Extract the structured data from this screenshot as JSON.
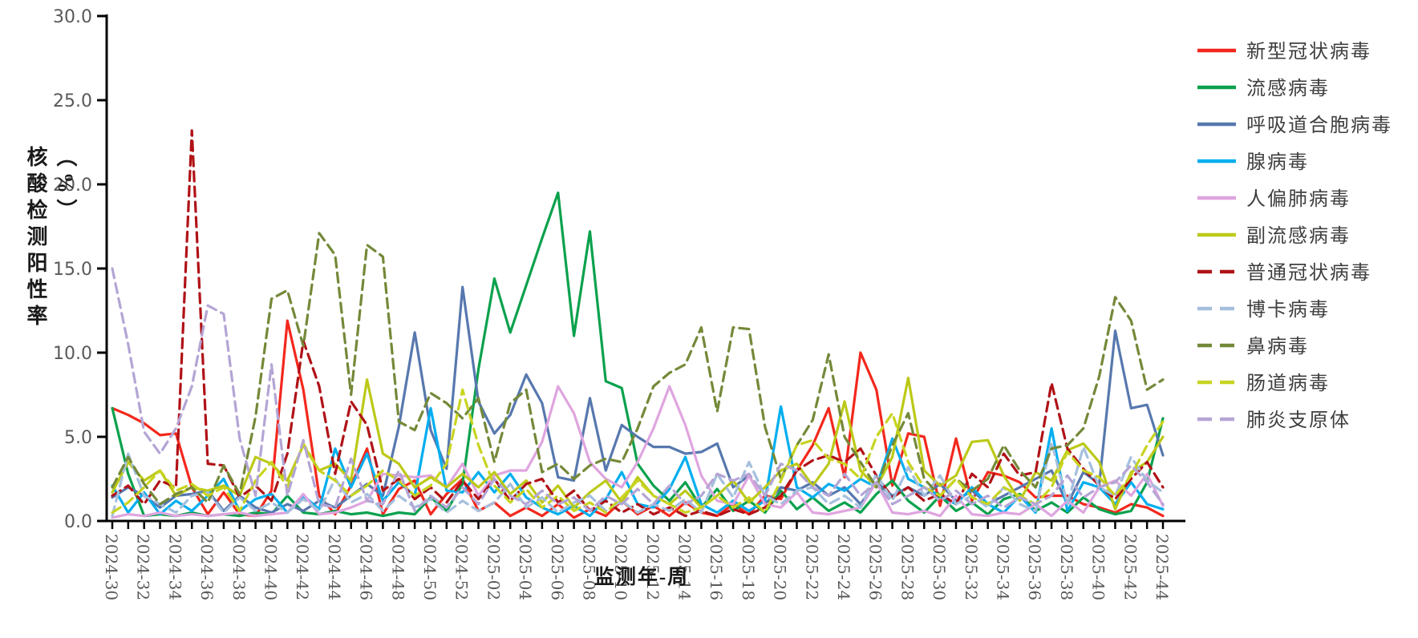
{
  "y_axis": {
    "title": "核酸检测阳性率（%）",
    "min": 0,
    "max": 30,
    "step": 5,
    "tick_labels": [
      "0.0",
      "5.0",
      "10.0",
      "15.0",
      "20.0",
      "25.0",
      "30.0"
    ]
  },
  "x_axis": {
    "title": "监测年-周",
    "label_every_n_weeks": 2
  },
  "chart_data": {
    "type": "line",
    "title": "",
    "xlabel": "监测年-周",
    "ylabel": "核酸检测阳性率（%）",
    "ylim": [
      0,
      30
    ],
    "grid": false,
    "legend_position": "right",
    "x": [
      "2024-30",
      "2024-31",
      "2024-32",
      "2024-33",
      "2024-34",
      "2024-35",
      "2024-36",
      "2024-37",
      "2024-38",
      "2024-39",
      "2024-40",
      "2024-41",
      "2024-42",
      "2024-43",
      "2024-44",
      "2024-45",
      "2024-46",
      "2024-47",
      "2024-48",
      "2024-49",
      "2024-50",
      "2024-51",
      "2024-52",
      "2025-01",
      "2025-02",
      "2025-03",
      "2025-04",
      "2025-05",
      "2025-06",
      "2025-07",
      "2025-08",
      "2025-09",
      "2025-10",
      "2025-11",
      "2025-12",
      "2025-13",
      "2025-14",
      "2025-15",
      "2025-16",
      "2025-17",
      "2025-18",
      "2025-19",
      "2025-20",
      "2025-21",
      "2025-22",
      "2025-23",
      "2025-24",
      "2025-25",
      "2025-26",
      "2025-27",
      "2025-28",
      "2025-29",
      "2025-30",
      "2025-31",
      "2025-32",
      "2025-33",
      "2025-34",
      "2025-35",
      "2025-36",
      "2025-37",
      "2025-38",
      "2025-39",
      "2025-40",
      "2025-41",
      "2025-42",
      "2025-43",
      "2025-44"
    ],
    "series": [
      {
        "name": "新型冠状病毒",
        "color": "#F3281D",
        "dashed": false,
        "values": [
          6.7,
          6.3,
          5.8,
          5.1,
          5.2,
          2.0,
          0.4,
          1.7,
          0.4,
          0.3,
          1.8,
          11.9,
          7.8,
          1.5,
          0.4,
          2.1,
          4.3,
          0.4,
          1.9,
          2.4,
          0.4,
          1.6,
          2.5,
          0.6,
          1.1,
          0.3,
          0.8,
          0.3,
          1.0,
          0.2,
          0.7,
          0.3,
          1.2,
          0.4,
          0.9,
          0.3,
          1.1,
          0.5,
          0.3,
          1.0,
          0.4,
          1.5,
          1.3,
          3.0,
          4.5,
          6.7,
          2.6,
          10.0,
          7.8,
          2.1,
          5.2,
          5.0,
          0.9,
          4.9,
          1.2,
          2.9,
          2.7,
          2.3,
          1.4,
          1.5,
          1.5,
          1.0,
          0.8,
          0.5,
          1.0,
          0.8,
          0.3
        ]
      },
      {
        "name": "流感病毒",
        "color": "#0AA14D",
        "dashed": false,
        "values": [
          6.7,
          2.8,
          0.3,
          0.4,
          0.3,
          0.5,
          0.3,
          0.4,
          0.3,
          0.5,
          0.4,
          1.5,
          0.5,
          0.4,
          0.6,
          0.4,
          0.5,
          0.3,
          0.5,
          0.4,
          1.4,
          0.6,
          2.2,
          9.0,
          14.4,
          11.2,
          14.0,
          16.8,
          19.5,
          11.0,
          17.2,
          8.3,
          7.9,
          3.4,
          2.1,
          1.2,
          2.3,
          0.8,
          1.9,
          0.6,
          1.2,
          0.5,
          1.8,
          0.7,
          1.4,
          0.6,
          1.1,
          0.5,
          1.6,
          2.4,
          1.2,
          0.5,
          1.5,
          0.6,
          1.1,
          0.4,
          1.3,
          1.6,
          0.6,
          1.1,
          0.5,
          1.4,
          0.7,
          0.4,
          0.6,
          2.3,
          6.1
        ]
      },
      {
        "name": "呼吸道合胞病毒",
        "color": "#5778AE",
        "dashed": false,
        "values": [
          1.4,
          2.0,
          1.5,
          0.8,
          1.5,
          1.6,
          1.8,
          0.6,
          1.5,
          0.8,
          0.5,
          1.0,
          0.6,
          1.2,
          0.8,
          1.5,
          2.2,
          1.5,
          5.6,
          11.2,
          5.4,
          3.1,
          13.9,
          7.1,
          5.2,
          6.3,
          8.7,
          7.0,
          2.6,
          2.4,
          7.3,
          3.0,
          5.7,
          5.0,
          4.4,
          4.4,
          4.0,
          4.1,
          4.6,
          2.0,
          2.7,
          1.0,
          2.0,
          1.8,
          2.3,
          1.5,
          2.0,
          1.0,
          2.3,
          1.5,
          2.0,
          1.5,
          2.2,
          1.2,
          1.8,
          1.0,
          1.5,
          2.0,
          2.5,
          3.0,
          1.0,
          2.9,
          2.2,
          11.3,
          6.7,
          6.9,
          3.9
        ]
      },
      {
        "name": "腺病毒",
        "color": "#00AEEF",
        "dashed": false,
        "values": [
          2.1,
          0.5,
          1.7,
          0.4,
          1.2,
          0.6,
          1.5,
          2.5,
          0.6,
          1.3,
          1.6,
          0.5,
          1.5,
          0.7,
          4.3,
          2.0,
          4.0,
          1.2,
          2.3,
          1.5,
          6.7,
          1.8,
          1.7,
          2.9,
          1.7,
          2.8,
          1.4,
          0.8,
          0.4,
          0.9,
          0.3,
          1.3,
          2.9,
          1.0,
          0.8,
          1.9,
          3.8,
          1.0,
          0.5,
          1.2,
          0.6,
          1.2,
          6.8,
          2.0,
          1.4,
          2.2,
          1.8,
          2.5,
          2.0,
          4.9,
          2.5,
          2.0,
          1.5,
          1.0,
          2.0,
          1.0,
          0.5,
          1.5,
          0.5,
          5.5,
          0.6,
          2.3,
          2.0,
          1.0,
          2.3,
          1.0,
          0.7
        ]
      },
      {
        "name": "人偏肺病毒",
        "color": "#DFA5DF",
        "dashed": false,
        "values": [
          0.2,
          0.4,
          0.3,
          0.5,
          0.3,
          0.4,
          0.3,
          0.4,
          0.5,
          0.3,
          0.4,
          0.5,
          1.6,
          0.4,
          0.5,
          0.8,
          1.2,
          2.8,
          2.7,
          2.6,
          2.7,
          2.0,
          3.4,
          1.5,
          2.7,
          3.0,
          3.0,
          4.7,
          8.0,
          6.4,
          3.5,
          2.5,
          2.0,
          3.5,
          5.5,
          8.0,
          5.7,
          2.7,
          1.2,
          1.0,
          2.7,
          1.0,
          0.8,
          1.7,
          0.5,
          0.4,
          0.6,
          0.8,
          2.3,
          0.5,
          0.4,
          0.6,
          0.3,
          1.5,
          0.4,
          0.3,
          0.5,
          0.4,
          1.0,
          0.3,
          1.2,
          0.5,
          2.0,
          2.4,
          1.5,
          2.8,
          0.9
        ]
      },
      {
        "name": "副流感病毒",
        "color": "#BCC918",
        "dashed": false,
        "values": [
          1.7,
          3.5,
          2.4,
          3.0,
          1.5,
          2.0,
          1.8,
          2.1,
          1.5,
          3.8,
          3.4,
          2.4,
          4.5,
          3.0,
          3.4,
          2.4,
          8.4,
          4.0,
          3.4,
          2.0,
          2.6,
          2.0,
          2.8,
          2.0,
          2.9,
          1.6,
          2.4,
          1.1,
          2.1,
          0.8,
          1.7,
          2.4,
          1.1,
          2.6,
          1.5,
          1.0,
          1.8,
          0.8,
          1.5,
          2.4,
          1.1,
          2.0,
          3.0,
          3.4,
          2.1,
          3.4,
          7.1,
          3.0,
          2.0,
          3.8,
          8.5,
          3.0,
          2.1,
          2.7,
          4.7,
          4.8,
          2.7,
          1.2,
          2.9,
          2.4,
          4.2,
          4.6,
          3.5,
          0.7,
          2.9,
          3.5,
          5.0
        ]
      },
      {
        "name": "普通冠状病毒",
        "color": "#B01217",
        "dashed": true,
        "values": [
          1.5,
          2.1,
          1.0,
          2.4,
          2.0,
          23.2,
          3.4,
          3.3,
          1.4,
          2.1,
          1.2,
          4.0,
          10.7,
          8.0,
          2.8,
          7.1,
          5.7,
          1.8,
          2.5,
          1.3,
          2.0,
          1.1,
          2.4,
          1.3,
          2.5,
          1.2,
          2.2,
          2.5,
          1.1,
          1.8,
          0.6,
          1.2,
          0.5,
          1.0,
          0.4,
          0.8,
          0.3,
          0.6,
          0.3,
          0.7,
          0.4,
          0.8,
          1.5,
          3.0,
          3.6,
          3.9,
          3.5,
          4.3,
          2.7,
          1.4,
          2.0,
          1.2,
          1.6,
          1.0,
          2.8,
          2.0,
          4.0,
          2.7,
          2.9,
          8.2,
          4.3,
          3.1,
          2.1,
          1.3,
          2.5,
          3.5,
          2.0
        ]
      },
      {
        "name": "博卡病毒",
        "color": "#A5BFDD",
        "dashed": true,
        "values": [
          0.3,
          4.0,
          1.5,
          1.0,
          0.5,
          1.5,
          1.7,
          0.5,
          1.4,
          0.6,
          1.1,
          0.5,
          1.3,
          0.6,
          2.5,
          1.1,
          1.6,
          0.6,
          1.5,
          0.8,
          1.3,
          0.5,
          1.2,
          0.6,
          1.1,
          2.2,
          0.8,
          1.4,
          0.5,
          1.1,
          1.5,
          0.6,
          1.2,
          0.5,
          1.0,
          0.6,
          1.3,
          0.5,
          2.8,
          1.4,
          3.5,
          1.5,
          1.0,
          1.8,
          2.0,
          1.0,
          1.5,
          0.8,
          2.8,
          1.2,
          3.2,
          1.5,
          2.7,
          1.0,
          1.5,
          0.8,
          2.0,
          1.0,
          0.6,
          4.7,
          1.0,
          4.4,
          2.0,
          1.5,
          3.8,
          2.4,
          1.7
        ]
      },
      {
        "name": "鼻病毒",
        "color": "#748939",
        "dashed": true,
        "values": [
          2.0,
          3.8,
          2.2,
          1.0,
          1.6,
          2.0,
          1.1,
          3.3,
          1.6,
          6.2,
          13.2,
          13.7,
          10.4,
          17.1,
          15.8,
          7.5,
          16.4,
          15.7,
          5.9,
          5.4,
          7.6,
          7.0,
          6.1,
          7.3,
          3.5,
          7.0,
          7.8,
          2.9,
          3.4,
          2.5,
          3.3,
          3.7,
          3.5,
          5.5,
          8.0,
          8.8,
          9.3,
          11.5,
          6.5,
          11.5,
          11.4,
          5.6,
          2.5,
          4.5,
          6.0,
          9.9,
          5.0,
          3.5,
          2.0,
          4.5,
          6.4,
          2.5,
          1.5,
          2.5,
          1.8,
          2.5,
          4.5,
          3.0,
          2.0,
          4.3,
          4.5,
          5.5,
          8.6,
          13.3,
          11.9,
          7.8,
          8.4
        ]
      },
      {
        "name": "肠道病毒",
        "color": "#C8D421",
        "dashed": true,
        "values": [
          0.5,
          1.1,
          2.0,
          3.0,
          1.8,
          2.2,
          1.5,
          2.0,
          0.6,
          2.4,
          3.5,
          2.0,
          4.6,
          3.0,
          2.4,
          1.5,
          2.1,
          3.0,
          2.4,
          1.5,
          2.1,
          3.4,
          7.8,
          4.5,
          2.1,
          1.1,
          1.9,
          0.8,
          1.5,
          0.6,
          1.1,
          0.5,
          1.4,
          2.4,
          1.5,
          1.0,
          0.5,
          0.8,
          1.5,
          0.8,
          1.4,
          0.5,
          2.4,
          4.5,
          4.8,
          3.7,
          3.4,
          2.5,
          5.0,
          6.4,
          3.5,
          2.0,
          1.5,
          2.5,
          1.4,
          1.0,
          2.0,
          1.5,
          1.0,
          2.0,
          4.1,
          3.0,
          2.6,
          1.5,
          2.7,
          4.5,
          5.9
        ]
      },
      {
        "name": "肺炎支原体",
        "color": "#B4A5D5",
        "dashed": true,
        "values": [
          15.0,
          10.5,
          5.3,
          4.0,
          5.5,
          8.0,
          12.8,
          12.3,
          4.9,
          1.5,
          9.3,
          1.5,
          4.8,
          1.0,
          0.8,
          3.7,
          1.2,
          1.0,
          3.0,
          0.6,
          1.5,
          0.8,
          2.0,
          1.0,
          2.5,
          1.5,
          1.0,
          1.8,
          1.0,
          1.4,
          0.6,
          1.5,
          1.0,
          1.9,
          1.0,
          2.1,
          1.0,
          1.5,
          2.8,
          2.4,
          2.8,
          1.5,
          3.4,
          3.0,
          2.0,
          1.5,
          2.8,
          1.5,
          2.3,
          1.0,
          1.5,
          2.0,
          1.2,
          1.8,
          1.0,
          1.5,
          0.8,
          1.4,
          1.0,
          1.5,
          2.7,
          1.4,
          2.0,
          2.3,
          3.3,
          2.3,
          1.0
        ]
      }
    ]
  },
  "legend": {
    "note": "items mirror chart_data.series order"
  },
  "style_colors": {
    "axis": "#000000",
    "tick_label": "#595959",
    "legend_text": "#3F3F3F"
  }
}
